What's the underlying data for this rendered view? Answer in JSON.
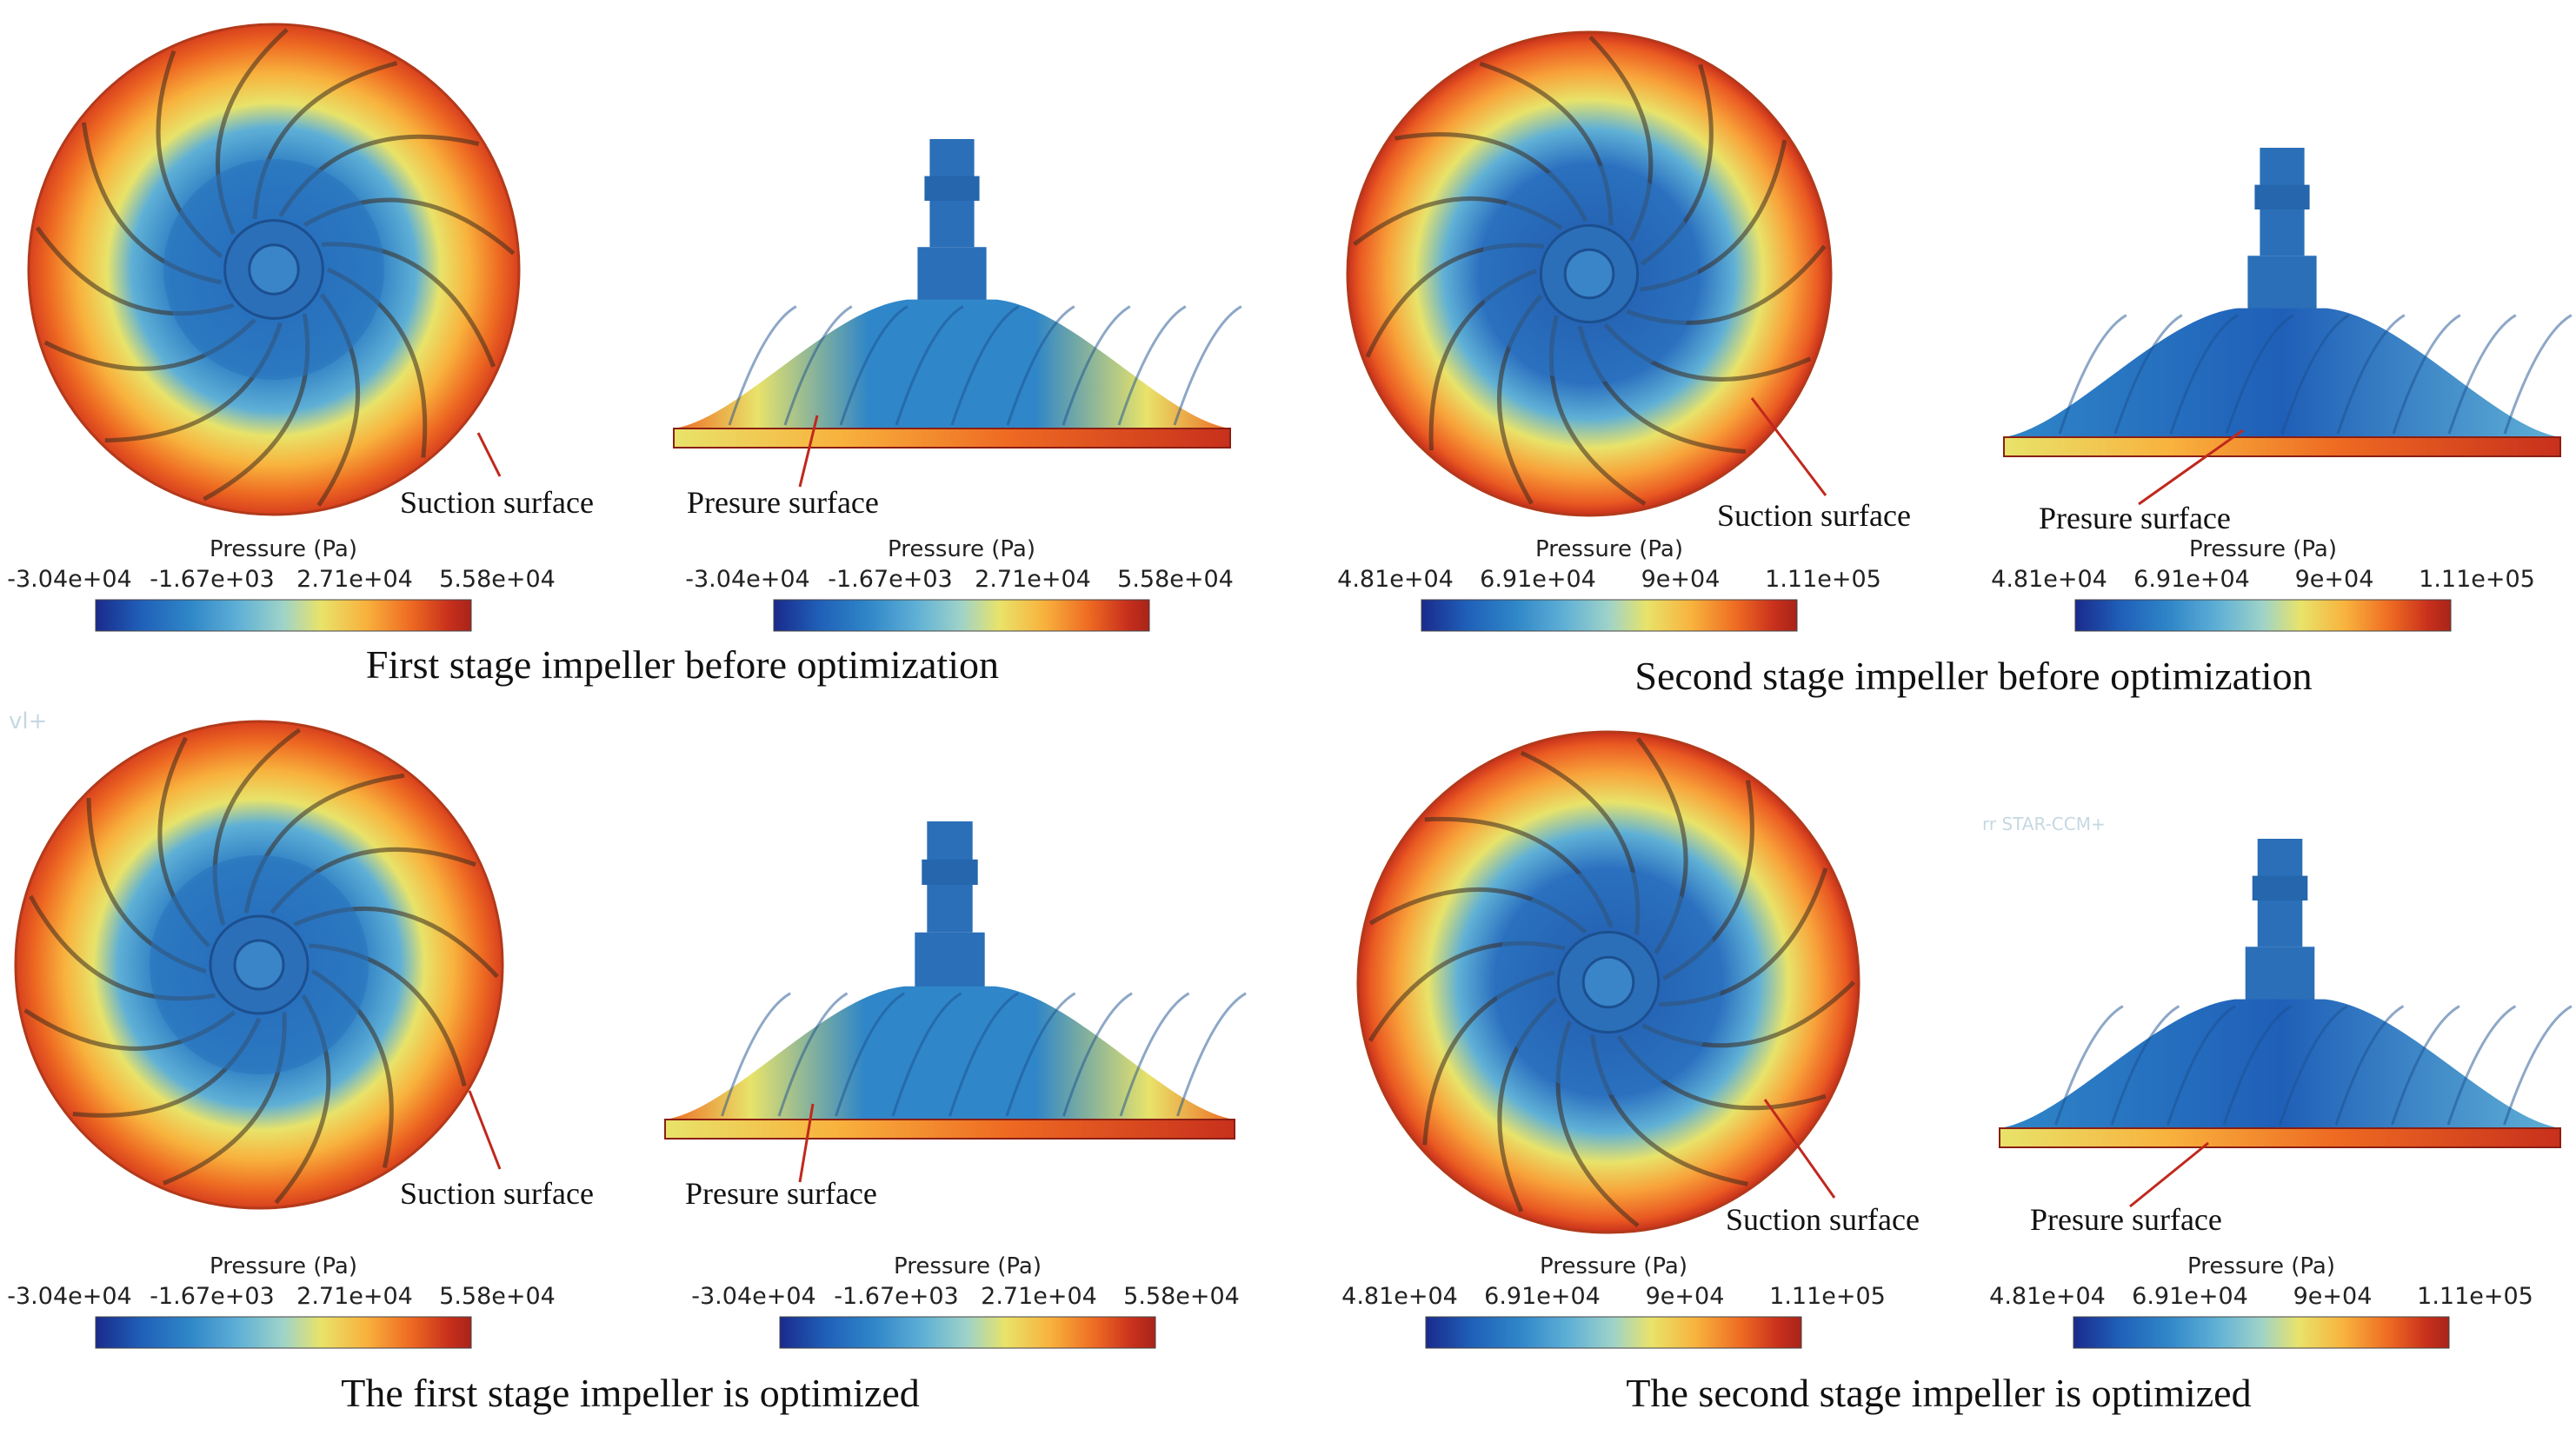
{
  "watermarks": [
    "vl+",
    "rr STAR-CCM+"
  ],
  "colormap": [
    "#1a2a8c",
    "#1f5fb8",
    "#2f86c8",
    "#5fb0d6",
    "#9fd3c8",
    "#e8e36a",
    "#f8b23d",
    "#ee6a22",
    "#c8301c",
    "#a8241a"
  ],
  "panels": [
    {
      "caption": "First stage impeller before optimization",
      "top_view": {
        "annotation": "Suction surface",
        "colorbar": {
          "title": "Pressure (Pa)",
          "ticks": [
            "-3.04e+04",
            "-1.67e+03",
            "2.71e+04",
            "5.58e+04"
          ]
        }
      },
      "side_view": {
        "annotation": "Presure surface",
        "colorbar": {
          "title": "Pressure (Pa)",
          "ticks": [
            "-3.04e+04",
            "-1.67e+03",
            "2.71e+04",
            "5.58e+04"
          ]
        }
      }
    },
    {
      "caption": "Second stage impeller before optimization",
      "top_view": {
        "annotation": "Suction surface",
        "colorbar": {
          "title": "Pressure (Pa)",
          "ticks": [
            "4.81e+04",
            "6.91e+04",
            "9e+04",
            "1.11e+05"
          ]
        }
      },
      "side_view": {
        "annotation": "Presure surface",
        "colorbar": {
          "title": "Pressure (Pa)",
          "ticks": [
            "4.81e+04",
            "6.91e+04",
            "9e+04",
            "1.11e+05"
          ]
        }
      }
    },
    {
      "caption": "The first stage impeller is optimized",
      "top_view": {
        "annotation": "Suction surface",
        "colorbar": {
          "title": "Pressure (Pa)",
          "ticks": [
            "-3.04e+04",
            "-1.67e+03",
            "2.71e+04",
            "5.58e+04"
          ]
        }
      },
      "side_view": {
        "annotation": "Presure surface",
        "colorbar": {
          "title": "Pressure (Pa)",
          "ticks": [
            "-3.04e+04",
            "-1.67e+03",
            "2.71e+04",
            "5.58e+04"
          ]
        }
      }
    },
    {
      "caption": "The second stage impeller is optimized",
      "top_view": {
        "annotation": "Suction surface",
        "colorbar": {
          "title": "Pressure (Pa)",
          "ticks": [
            "4.81e+04",
            "6.91e+04",
            "9e+04",
            "1.11e+05"
          ]
        }
      },
      "side_view": {
        "annotation": "Presure surface",
        "colorbar": {
          "title": "Pressure (Pa)",
          "ticks": [
            "4.81e+04",
            "6.91e+04",
            "9e+04",
            "1.11e+05"
          ]
        }
      }
    }
  ]
}
